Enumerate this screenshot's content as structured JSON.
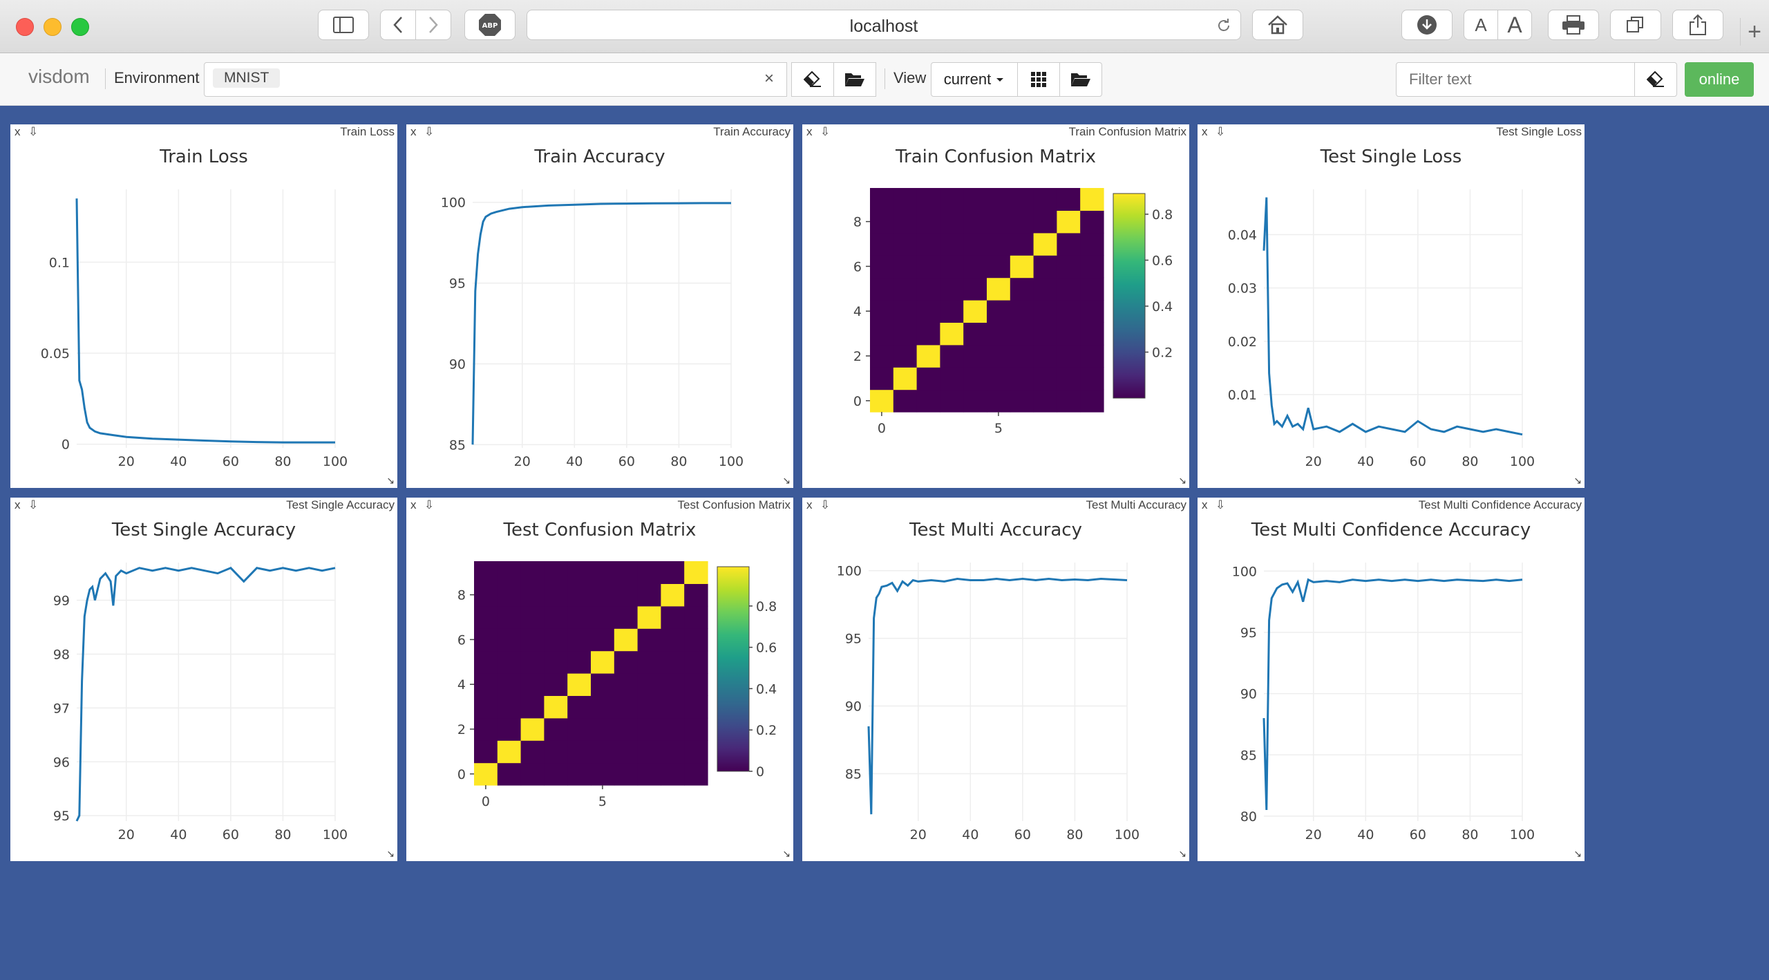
{
  "browser": {
    "url": "localhost",
    "adblock_label": "ABP",
    "font_small": "A",
    "font_large": "A",
    "new_tab": "+"
  },
  "toolbar": {
    "logo": "visdom",
    "environment_label": "Environment",
    "environment_tag": "MNIST",
    "clear_label": "×",
    "view_label": "View",
    "view_select": "current",
    "filter_placeholder": "Filter text",
    "status": "online"
  },
  "colors": {
    "background": "#3c5a99",
    "line": "#1f77b4",
    "status_green": "#5cb85c",
    "matrix_low": "#440154",
    "matrix_high": "#fde725"
  },
  "panes": [
    {
      "name": "Train Loss",
      "close": "x",
      "download": "⇩",
      "resize": "↘"
    },
    {
      "name": "Train Accuracy",
      "close": "x",
      "download": "⇩",
      "resize": "↘"
    },
    {
      "name": "Train Confusion Matrix",
      "close": "x",
      "download": "⇩",
      "resize": "↘"
    },
    {
      "name": "Test Single Loss",
      "close": "x",
      "download": "⇩",
      "resize": "↘"
    },
    {
      "name": "Test Single Accuracy",
      "close": "x",
      "download": "⇩",
      "resize": "↘"
    },
    {
      "name": "Test Confusion Matrix",
      "close": "x",
      "download": "⇩",
      "resize": "↘"
    },
    {
      "name": "Test Multi Accuracy",
      "close": "x",
      "download": "⇩",
      "resize": "↘"
    },
    {
      "name": "Test Multi Confidence Accuracy",
      "close": "x",
      "download": "⇩",
      "resize": "↘"
    }
  ],
  "chart_data": [
    {
      "type": "line",
      "title": "Train Loss",
      "x_ticks": [
        20,
        40,
        60,
        80,
        100
      ],
      "y_ticks": [
        0,
        0.05,
        0.1
      ],
      "xlim": [
        1,
        100
      ],
      "ylim": [
        -0.002,
        0.14
      ],
      "x": [
        1,
        2,
        3,
        4,
        5,
        6,
        8,
        10,
        15,
        20,
        30,
        40,
        50,
        60,
        70,
        80,
        90,
        100
      ],
      "y": [
        0.135,
        0.035,
        0.03,
        0.02,
        0.012,
        0.009,
        0.007,
        0.006,
        0.005,
        0.004,
        0.003,
        0.0025,
        0.002,
        0.0015,
        0.0012,
        0.001,
        0.001,
        0.001
      ]
    },
    {
      "type": "line",
      "title": "Train Accuracy",
      "x_ticks": [
        20,
        40,
        60,
        80,
        100
      ],
      "y_ticks": [
        85,
        90,
        95,
        100
      ],
      "xlim": [
        1,
        100
      ],
      "ylim": [
        84.8,
        100.8
      ],
      "x": [
        1,
        2,
        3,
        4,
        5,
        6,
        8,
        10,
        15,
        20,
        30,
        40,
        50,
        60,
        70,
        80,
        90,
        100
      ],
      "y": [
        85.0,
        94.5,
        96.8,
        98.0,
        98.8,
        99.1,
        99.3,
        99.4,
        99.6,
        99.7,
        99.8,
        99.85,
        99.9,
        99.92,
        99.93,
        99.94,
        99.95,
        99.95
      ]
    },
    {
      "type": "heatmap",
      "title": "Train Confusion Matrix",
      "x_ticks": [
        0,
        5
      ],
      "y_ticks": [
        0,
        2,
        4,
        6,
        8
      ],
      "size": 10,
      "diagonal_value": 0.89,
      "off_diagonal_value": 0.0,
      "colorbar_ticks": [
        0.2,
        0.4,
        0.6,
        0.8
      ],
      "colorbar_range": [
        0,
        0.89
      ]
    },
    {
      "type": "line",
      "title": "Test Single Loss",
      "x_ticks": [
        20,
        40,
        60,
        80,
        100
      ],
      "y_ticks": [
        0.01,
        0.02,
        0.03,
        0.04
      ],
      "xlim": [
        1,
        100
      ],
      "ylim": [
        0,
        0.0485
      ],
      "x": [
        1,
        2,
        3,
        4,
        5,
        6,
        8,
        10,
        12,
        14,
        16,
        18,
        20,
        25,
        30,
        35,
        40,
        45,
        50,
        55,
        60,
        65,
        70,
        75,
        80,
        85,
        90,
        95,
        100
      ],
      "y": [
        0.037,
        0.047,
        0.014,
        0.008,
        0.0045,
        0.005,
        0.004,
        0.006,
        0.004,
        0.0045,
        0.0035,
        0.0075,
        0.0035,
        0.004,
        0.003,
        0.0045,
        0.003,
        0.004,
        0.0035,
        0.003,
        0.005,
        0.0035,
        0.003,
        0.004,
        0.0035,
        0.003,
        0.0035,
        0.003,
        0.0025
      ]
    },
    {
      "type": "line",
      "title": "Test Single Accuracy",
      "x_ticks": [
        20,
        40,
        60,
        80,
        100
      ],
      "y_ticks": [
        95,
        96,
        97,
        98,
        99
      ],
      "xlim": [
        1,
        100
      ],
      "ylim": [
        94.9,
        99.7
      ],
      "x": [
        1,
        2,
        3,
        4,
        5,
        6,
        7,
        8,
        10,
        12,
        14,
        15,
        16,
        18,
        20,
        25,
        30,
        35,
        40,
        45,
        50,
        55,
        60,
        65,
        70,
        75,
        80,
        85,
        90,
        95,
        100
      ],
      "y": [
        94.9,
        95.0,
        97.5,
        98.7,
        99.0,
        99.2,
        99.25,
        99.0,
        99.4,
        99.5,
        99.35,
        98.9,
        99.45,
        99.55,
        99.5,
        99.6,
        99.55,
        99.6,
        99.55,
        99.6,
        99.55,
        99.5,
        99.6,
        99.35,
        99.6,
        99.55,
        99.6,
        99.55,
        99.6,
        99.55,
        99.6
      ]
    },
    {
      "type": "heatmap",
      "title": "Test Confusion Matrix",
      "x_ticks": [
        0,
        5
      ],
      "y_ticks": [
        0,
        2,
        4,
        6,
        8
      ],
      "size": 10,
      "diagonal_value": 0.99,
      "off_diagonal_value": 0.0,
      "colorbar_ticks": [
        0,
        0.2,
        0.4,
        0.6,
        0.8
      ],
      "colorbar_range": [
        0,
        0.99
      ]
    },
    {
      "type": "line",
      "title": "Test Multi Accuracy",
      "x_ticks": [
        20,
        40,
        60,
        80,
        100
      ],
      "y_ticks": [
        85,
        90,
        95,
        100
      ],
      "xlim": [
        1,
        100
      ],
      "ylim": [
        81.5,
        100.6
      ],
      "x": [
        1,
        2,
        3,
        4,
        5,
        6,
        8,
        10,
        12,
        14,
        16,
        18,
        20,
        25,
        30,
        35,
        40,
        45,
        50,
        55,
        60,
        65,
        70,
        75,
        80,
        85,
        90,
        95,
        100
      ],
      "y": [
        88.5,
        82.0,
        96.5,
        98.0,
        98.3,
        98.8,
        98.9,
        99.1,
        98.5,
        99.2,
        98.9,
        99.3,
        99.2,
        99.3,
        99.2,
        99.4,
        99.3,
        99.3,
        99.4,
        99.3,
        99.4,
        99.3,
        99.4,
        99.3,
        99.35,
        99.3,
        99.4,
        99.35,
        99.3
      ]
    },
    {
      "type": "line",
      "title": "Test Multi Confidence Accuracy",
      "x_ticks": [
        20,
        40,
        60,
        80,
        100
      ],
      "y_ticks": [
        80,
        85,
        90,
        95,
        100
      ],
      "xlim": [
        1,
        100
      ],
      "ylim": [
        79.6,
        100.7
      ],
      "x": [
        1,
        2,
        3,
        4,
        5,
        6,
        8,
        10,
        12,
        14,
        16,
        18,
        20,
        25,
        30,
        35,
        40,
        45,
        50,
        55,
        60,
        65,
        70,
        75,
        80,
        85,
        90,
        95,
        100
      ],
      "y": [
        88.0,
        80.5,
        96.0,
        97.8,
        98.2,
        98.6,
        98.9,
        99.0,
        98.3,
        99.1,
        97.5,
        99.3,
        99.1,
        99.2,
        99.1,
        99.3,
        99.2,
        99.3,
        99.2,
        99.3,
        99.2,
        99.3,
        99.2,
        99.3,
        99.25,
        99.2,
        99.3,
        99.2,
        99.3
      ]
    }
  ]
}
